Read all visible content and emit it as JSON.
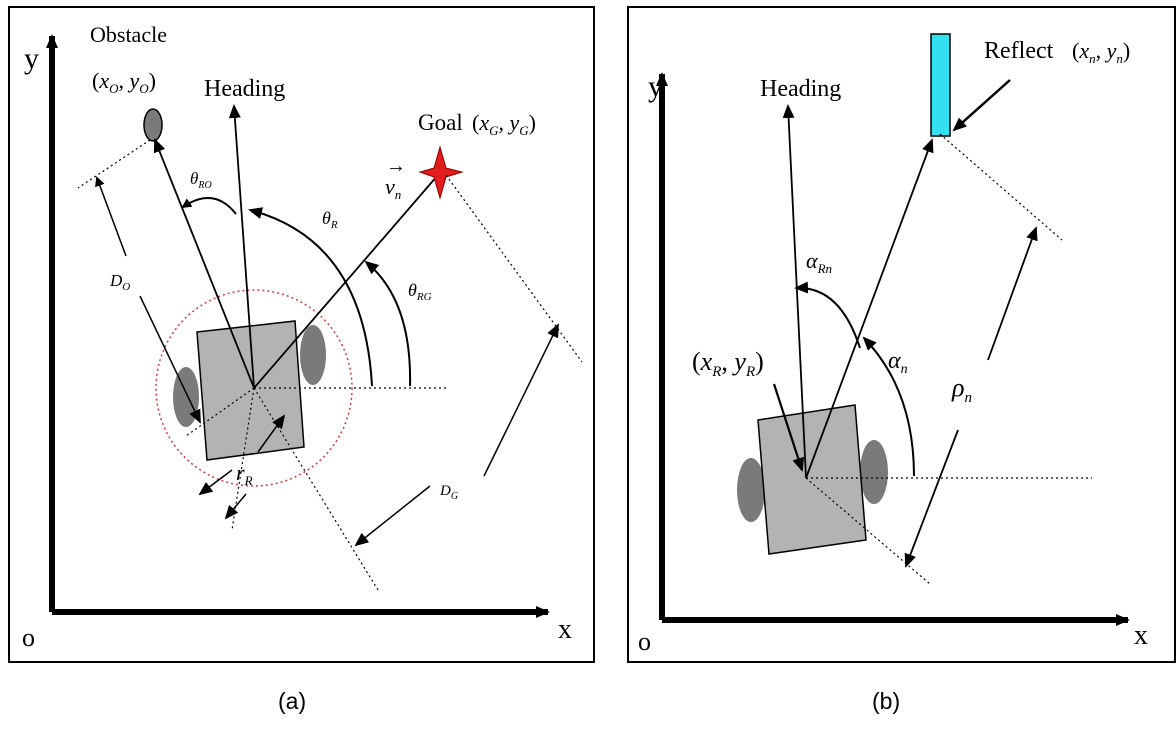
{
  "panel_a": {
    "caption": "(a)",
    "axis_y": "y",
    "axis_x": "x",
    "origin": "o",
    "obstacle_label": "Obstacle",
    "obstacle_coord": "(x_O, y_O)",
    "heading_label": "Heading",
    "goal_label": "Goal",
    "goal_coord": "(x_G, y_G)",
    "theta_ro": "θ_RO",
    "theta_r": "θ_R",
    "theta_rg": "θ_RG",
    "velocity": "v_n",
    "dist_obstacle": "D_O",
    "dist_goal": "D_G",
    "radius": "r_R",
    "colors": {
      "goal_star": "#e21d1d",
      "robot_body": "#b3b3b3",
      "wheel": "#7a7a7a",
      "safety_circle": "#d23a3a"
    }
  },
  "panel_b": {
    "caption": "(b)",
    "axis_y": "y",
    "axis_x": "x",
    "origin": "o",
    "heading_label": "Heading",
    "reflect_label": "Reflect",
    "reflect_coord": "(x_n, y_n)",
    "robot_coord": "(x_R, y_R)",
    "alpha_rn": "α_Rn",
    "alpha_n": "α_n",
    "rho_n": "ρ_n",
    "colors": {
      "reflector": "#33e0f0",
      "robot_body": "#b3b3b3",
      "wheel": "#7a7a7a"
    }
  }
}
